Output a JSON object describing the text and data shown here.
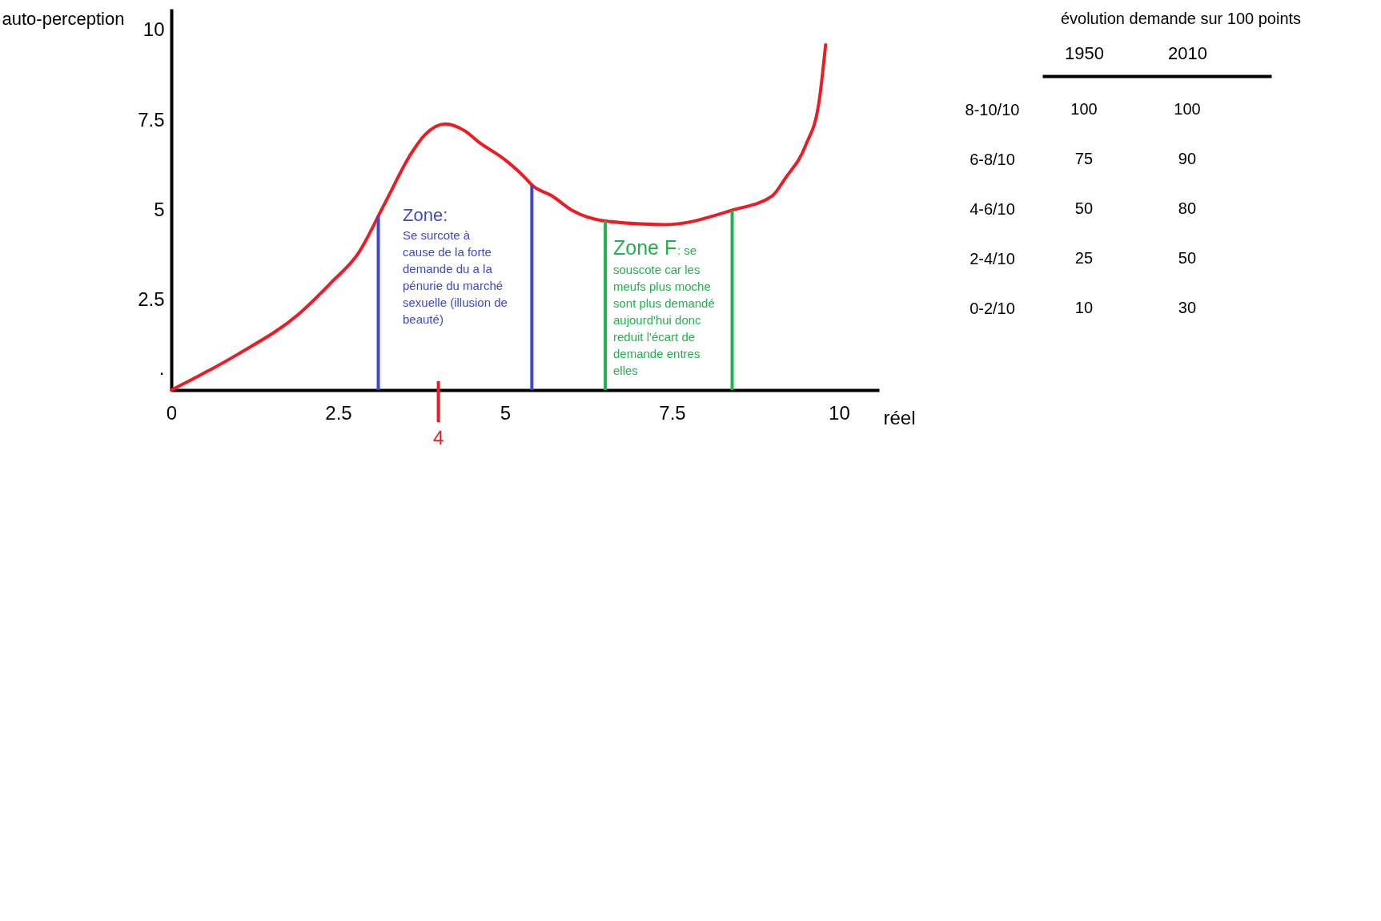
{
  "chart_data": [
    {
      "type": "line",
      "ylabel": "auto-perception",
      "xlabel": "réel",
      "x": [
        0,
        1,
        1.9,
        2.4,
        2.8,
        3.2,
        3.6,
        3.8,
        4.1,
        4.4,
        4.6,
        5,
        5.3,
        5.4,
        5.7,
        6,
        6.5,
        7.4,
        8.4,
        9,
        9.2,
        9.5,
        9.7,
        9.8
      ],
      "series": [
        {
          "color": "#ed1c24",
          "values": [
            0,
            1,
            2.1,
            3,
            3.8,
            5.2,
            6.6,
            7.1,
            7.4,
            7.2,
            6.9,
            6.4,
            5.9,
            5.7,
            5.4,
            5,
            4.7,
            4.6,
            5,
            5.4,
            5.9,
            6.8,
            8,
            9.6
          ]
        }
      ],
      "xlim": [
        0,
        10.6
      ],
      "ylim": [
        0,
        10.6
      ],
      "xticks": [
        0,
        2.5,
        5,
        7.5,
        10
      ],
      "yticks": [
        {
          "value": 0.6,
          "label": "."
        },
        2.5,
        5,
        7.5,
        10
      ],
      "ref_lines": [
        {
          "axis": "x",
          "value": 3.1,
          "color": "#3f48cc"
        },
        {
          "axis": "x",
          "value": 5.4,
          "color": "#3f48cc"
        },
        {
          "axis": "x",
          "value": 6.5,
          "color": "#22b14c"
        },
        {
          "axis": "x",
          "value": 8.4,
          "color": "#22b14c"
        },
        {
          "axis": "x",
          "value": 4,
          "label": "4",
          "color": "#ed1c24"
        }
      ],
      "annotations": [
        "Zone:",
        "Se surcote à\ncause de la forte\ndemande du a la\npénurie du marché\nsexuelle (illusion de\nbeauté)",
        "Zone F",
        ": se",
        "souscote car les\nmeufs plus moche\nsont plus demandé\naujourd'hui donc\nreduit l'écart de\ndemande entres\nelles"
      ]
    },
    {
      "type": "heatmap",
      "title": "évolution demande sur 100 points",
      "categories": [
        "1950",
        "2010"
      ],
      "y_categories": [
        "8-10/10",
        "6-8/10",
        "4-6/10",
        "2-4/10",
        "0-2/10"
      ],
      "cells": [
        [
          100,
          100
        ],
        [
          75,
          90
        ],
        [
          50,
          80
        ],
        [
          25,
          50
        ],
        [
          10,
          30
        ]
      ],
      "data_labels": true
    }
  ]
}
